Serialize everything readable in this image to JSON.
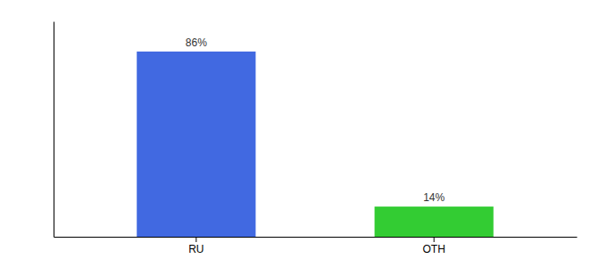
{
  "chart_data": {
    "type": "bar",
    "categories": [
      "RU",
      "OTH"
    ],
    "values": [
      86,
      14
    ],
    "value_labels": [
      "86%",
      "14%"
    ],
    "colors": [
      "#4169e1",
      "#33cc33"
    ],
    "ylim": [
      0,
      100
    ],
    "data_labels": true,
    "tick_labels": "x"
  }
}
